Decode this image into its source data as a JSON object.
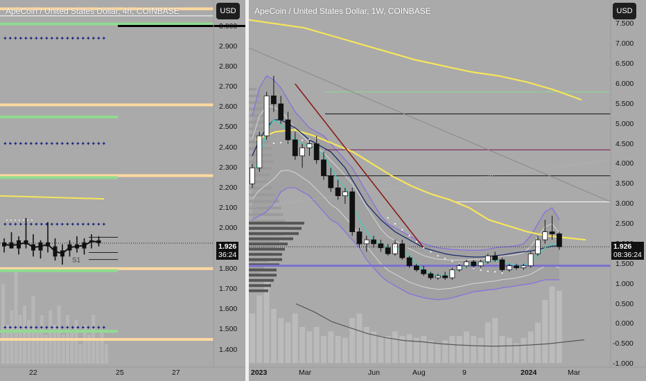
{
  "left": {
    "title": "ApeCoin / United States Dollar, 4h, COINBASE",
    "currency_button": "USD",
    "y_ticks": [
      "3.000",
      "2.900",
      "2.800",
      "2.700",
      "2.600",
      "2.500",
      "2.400",
      "2.300",
      "2.200",
      "2.100",
      "2.000",
      "1.900",
      "1.800",
      "1.700",
      "1.600",
      "1.500",
      "1.400"
    ],
    "x_ticks": [
      "22",
      "25",
      "27"
    ],
    "price_label": "1.926",
    "countdown": "36:24",
    "s1_label": "S1"
  },
  "right": {
    "title": "ApeCoin / United States Dollar, 1W, COINBASE",
    "currency_button": "USD",
    "y_ticks": [
      "7.500",
      "7.000",
      "6.500",
      "6.000",
      "5.500",
      "5.000",
      "4.500",
      "4.000",
      "3.500",
      "3.000",
      "2.500",
      "2.000",
      "1.500",
      "1.000",
      "0.500",
      "0.000",
      "-0.500",
      "-1.000"
    ],
    "x_ticks": [
      "2023",
      "Mar",
      "Jun",
      "Aug",
      "9",
      "2024",
      "Mar"
    ],
    "price_label": "1.926",
    "countdown": "08:36:24"
  },
  "colors": {
    "background": "#aaaaaa",
    "yellow": "#f7e65a",
    "orange_level": "#ffd9a0",
    "green_level": "#8fdc8f",
    "pivot_dots": "#1a237e",
    "bollinger": "#8a6fdc",
    "ema_dark_blue": "#1b2a6b",
    "ema_red": "#8b1a1a",
    "teal": "#4cc9b0"
  },
  "chart_data": [
    {
      "type": "candlestick",
      "title": "ApeCoin / United States Dollar, 4h, COINBASE",
      "ylim": [
        1.33,
        3.06
      ],
      "y_ticks": [
        3.0,
        2.9,
        2.8,
        2.7,
        2.6,
        2.5,
        2.4,
        2.3,
        2.2,
        2.1,
        2.0,
        1.9,
        1.8,
        1.7,
        1.6,
        1.5,
        1.4
      ],
      "x_ticks": [
        "22",
        "25",
        "27"
      ],
      "last_price": 1.926,
      "horizontal_levels": [
        {
          "value": 3.085,
          "kind": "resistance",
          "color": "#ffd9a0"
        },
        {
          "value": 3.01,
          "kind": "pivot",
          "color": "#8fdc8f"
        },
        {
          "value": 2.61,
          "kind": "resistance",
          "color": "#ffd9a0"
        },
        {
          "value": 2.55,
          "kind": "pivot",
          "color": "#8fdc8f"
        },
        {
          "value": 2.26,
          "kind": "resistance",
          "color": "#ffd9a0"
        },
        {
          "value": 2.25,
          "kind": "pivot",
          "color": "#8fdc8f"
        },
        {
          "value": 1.8,
          "kind": "support",
          "color": "#ffd9a0"
        },
        {
          "value": 1.79,
          "kind": "pivot",
          "color": "#8fdc8f"
        },
        {
          "value": 1.49,
          "kind": "pivot",
          "color": "#8fdc8f"
        },
        {
          "value": 1.45,
          "kind": "support",
          "color": "#ffd9a0"
        }
      ],
      "dotted_levels": [
        2.94,
        2.42,
        2.02,
        1.51
      ],
      "yellow_line": 2.15,
      "candles": [
        {
          "o": 1.91,
          "h": 1.95,
          "l": 1.88,
          "c": 1.93
        },
        {
          "o": 1.93,
          "h": 1.98,
          "l": 1.9,
          "c": 1.9
        },
        {
          "o": 1.9,
          "h": 1.96,
          "l": 1.87,
          "c": 1.94
        },
        {
          "o": 1.94,
          "h": 2.05,
          "l": 1.9,
          "c": 1.92
        },
        {
          "o": 1.92,
          "h": 1.97,
          "l": 1.86,
          "c": 1.89
        },
        {
          "o": 1.89,
          "h": 1.94,
          "l": 1.85,
          "c": 1.93
        },
        {
          "o": 1.93,
          "h": 2.03,
          "l": 1.88,
          "c": 1.91
        },
        {
          "o": 1.91,
          "h": 1.95,
          "l": 1.84,
          "c": 1.86
        },
        {
          "o": 1.86,
          "h": 1.92,
          "l": 1.82,
          "c": 1.89
        },
        {
          "o": 1.89,
          "h": 1.94,
          "l": 1.86,
          "c": 1.92
        },
        {
          "o": 1.92,
          "h": 1.96,
          "l": 1.88,
          "c": 1.9
        },
        {
          "o": 1.9,
          "h": 1.95,
          "l": 1.87,
          "c": 1.93
        },
        {
          "o": 1.93,
          "h": 1.97,
          "l": 1.9,
          "c": 1.94
        },
        {
          "o": 1.94,
          "h": 1.96,
          "l": 1.91,
          "c": 1.926
        }
      ],
      "volume": [
        0.82,
        0.4,
        0.55,
        0.95,
        0.5,
        0.6,
        0.45,
        0.7,
        0.35,
        0.5,
        0.3,
        0.55,
        0.4,
        0.6,
        0.3,
        0.5,
        0.35,
        0.45,
        0.2,
        0.4,
        0.3,
        0.5,
        0.25,
        0.35,
        0.2
      ]
    },
    {
      "type": "candlestick",
      "title": "ApeCoin / United States Dollar, 1W, COINBASE",
      "ylim": [
        -1.05,
        7.75
      ],
      "y_ticks": [
        7.5,
        7.0,
        6.5,
        6.0,
        5.5,
        5.0,
        4.5,
        4.0,
        3.5,
        3.0,
        2.5,
        2.0,
        1.5,
        1.0,
        0.5,
        0.0,
        -0.5,
        -1.0
      ],
      "x_ticks": [
        "2023",
        "Mar",
        "Jun",
        "Aug",
        "9",
        "2024",
        "Mar"
      ],
      "last_price": 1.926,
      "horizontal_levels": [
        {
          "value": 5.8,
          "color": "#8fdc8f"
        },
        {
          "value": 5.25,
          "color": "#111111"
        },
        {
          "value": 4.35,
          "color": "#7b1450"
        },
        {
          "value": 3.7,
          "color": "#111111"
        },
        {
          "value": 3.05,
          "color": "#ffffff"
        },
        {
          "value": 1.45,
          "color": "#7b6fd0"
        }
      ],
      "candles": [
        {
          "o": 3.5,
          "h": 4.0,
          "l": 3.4,
          "c": 3.9
        },
        {
          "o": 3.9,
          "h": 4.8,
          "l": 3.8,
          "c": 4.7
        },
        {
          "o": 4.7,
          "h": 5.8,
          "l": 4.6,
          "c": 5.7
        },
        {
          "o": 5.7,
          "h": 6.2,
          "l": 5.3,
          "c": 5.5
        },
        {
          "o": 5.5,
          "h": 5.7,
          "l": 5.0,
          "c": 5.1
        },
        {
          "o": 5.1,
          "h": 5.3,
          "l": 4.5,
          "c": 4.6
        },
        {
          "o": 4.6,
          "h": 4.8,
          "l": 4.1,
          "c": 4.2
        },
        {
          "o": 4.2,
          "h": 4.5,
          "l": 3.9,
          "c": 4.4
        },
        {
          "o": 4.4,
          "h": 4.6,
          "l": 4.2,
          "c": 4.5
        },
        {
          "o": 4.5,
          "h": 4.7,
          "l": 4.0,
          "c": 4.1
        },
        {
          "o": 4.1,
          "h": 4.3,
          "l": 3.6,
          "c": 3.7
        },
        {
          "o": 3.7,
          "h": 3.9,
          "l": 3.3,
          "c": 3.4
        },
        {
          "o": 3.4,
          "h": 3.6,
          "l": 3.1,
          "c": 3.2
        },
        {
          "o": 3.2,
          "h": 3.4,
          "l": 3.0,
          "c": 3.3
        },
        {
          "o": 3.3,
          "h": 3.4,
          "l": 2.2,
          "c": 2.3
        },
        {
          "o": 2.3,
          "h": 2.4,
          "l": 1.9,
          "c": 2.0
        },
        {
          "o": 2.0,
          "h": 2.2,
          "l": 1.8,
          "c": 2.1
        },
        {
          "o": 2.1,
          "h": 2.2,
          "l": 1.9,
          "c": 2.0
        },
        {
          "o": 2.0,
          "h": 2.1,
          "l": 1.8,
          "c": 1.9
        },
        {
          "o": 1.9,
          "h": 2.0,
          "l": 1.7,
          "c": 1.75
        },
        {
          "o": 1.75,
          "h": 2.1,
          "l": 1.7,
          "c": 2.0
        },
        {
          "o": 2.0,
          "h": 2.1,
          "l": 1.6,
          "c": 1.65
        },
        {
          "o": 1.65,
          "h": 1.7,
          "l": 1.4,
          "c": 1.45
        },
        {
          "o": 1.45,
          "h": 1.5,
          "l": 1.3,
          "c": 1.35
        },
        {
          "o": 1.35,
          "h": 1.45,
          "l": 1.2,
          "c": 1.25
        },
        {
          "o": 1.25,
          "h": 1.3,
          "l": 1.1,
          "c": 1.15
        },
        {
          "o": 1.15,
          "h": 1.25,
          "l": 1.1,
          "c": 1.2
        },
        {
          "o": 1.2,
          "h": 1.3,
          "l": 1.1,
          "c": 1.15
        },
        {
          "o": 1.15,
          "h": 1.4,
          "l": 1.1,
          "c": 1.35
        },
        {
          "o": 1.35,
          "h": 1.5,
          "l": 1.3,
          "c": 1.45
        },
        {
          "o": 1.45,
          "h": 1.6,
          "l": 1.4,
          "c": 1.55
        },
        {
          "o": 1.55,
          "h": 1.6,
          "l": 1.4,
          "c": 1.45
        },
        {
          "o": 1.45,
          "h": 1.6,
          "l": 1.4,
          "c": 1.55
        },
        {
          "o": 1.55,
          "h": 1.75,
          "l": 1.5,
          "c": 1.7
        },
        {
          "o": 1.7,
          "h": 1.8,
          "l": 1.55,
          "c": 1.6
        },
        {
          "o": 1.6,
          "h": 1.65,
          "l": 1.3,
          "c": 1.35
        },
        {
          "o": 1.35,
          "h": 1.5,
          "l": 1.3,
          "c": 1.45
        },
        {
          "o": 1.45,
          "h": 1.5,
          "l": 1.35,
          "c": 1.4
        },
        {
          "o": 1.4,
          "h": 1.5,
          "l": 1.35,
          "c": 1.45
        },
        {
          "o": 1.45,
          "h": 1.8,
          "l": 1.4,
          "c": 1.75
        },
        {
          "o": 1.75,
          "h": 2.2,
          "l": 1.7,
          "c": 2.1
        },
        {
          "o": 2.1,
          "h": 2.6,
          "l": 2.0,
          "c": 2.3
        },
        {
          "o": 2.3,
          "h": 2.7,
          "l": 2.1,
          "c": 2.25
        },
        {
          "o": 2.25,
          "h": 2.3,
          "l": 1.85,
          "c": 1.926
        }
      ],
      "yellow_ma_1": [
        7.6,
        7.5,
        7.4,
        7.2,
        7.0,
        6.8,
        6.6,
        6.45,
        6.3,
        6.2,
        6.05,
        5.85,
        5.6
      ],
      "yellow_ma_2": [
        4.6,
        4.8,
        4.85,
        4.7,
        4.5,
        4.3,
        4.0,
        3.7,
        3.45,
        3.25,
        3.1,
        2.9,
        2.6,
        2.45,
        2.3,
        2.2,
        2.15,
        2.1
      ],
      "oscillator": [
        0.5,
        0.3,
        0.05,
        -0.1,
        -0.25,
        -0.35,
        -0.42,
        -0.45,
        -0.5,
        -0.53,
        -0.55,
        -0.56,
        -0.55,
        -0.53,
        -0.5,
        -0.45,
        -0.4
      ]
    }
  ]
}
